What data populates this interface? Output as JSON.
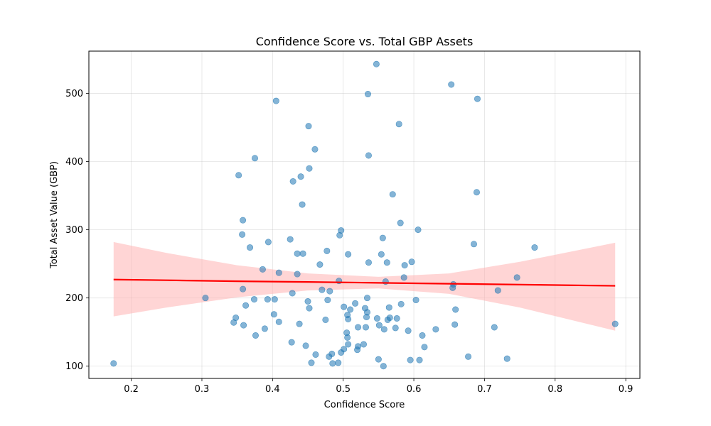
{
  "chart_data": {
    "type": "scatter",
    "title": "Confidence Score vs. Total GBP Assets",
    "xlabel": "Confidence Score",
    "ylabel": "Total Asset Value (GBP)",
    "xlim": [
      0.14,
      0.92
    ],
    "ylim": [
      82,
      562
    ],
    "grid": true,
    "x_ticks": [
      "0.2",
      "0.3",
      "0.4",
      "0.5",
      "0.6",
      "0.7",
      "0.8",
      "0.9"
    ],
    "y_ticks": [
      "100",
      "200",
      "300",
      "400",
      "500"
    ],
    "point_color": "#1f77b4",
    "point_alpha": 0.55,
    "regression": {
      "color": "#ff0000",
      "band_color": "#ffb3b3",
      "x": [
        0.175,
        0.25,
        0.35,
        0.45,
        0.55,
        0.65,
        0.75,
        0.885
      ],
      "y": [
        227,
        226,
        224.5,
        223.5,
        222.2,
        220.9,
        219.6,
        217.8
      ],
      "band_lower": [
        173,
        186,
        201,
        211,
        214,
        206,
        186,
        152
      ],
      "band_upper": [
        282,
        266,
        248,
        236,
        231,
        236,
        253,
        281
      ]
    },
    "points": [
      {
        "x": 0.175,
        "y": 104
      },
      {
        "x": 0.305,
        "y": 200
      },
      {
        "x": 0.345,
        "y": 164
      },
      {
        "x": 0.348,
        "y": 171
      },
      {
        "x": 0.352,
        "y": 380
      },
      {
        "x": 0.357,
        "y": 293
      },
      {
        "x": 0.358,
        "y": 314
      },
      {
        "x": 0.358,
        "y": 213
      },
      {
        "x": 0.359,
        "y": 160
      },
      {
        "x": 0.362,
        "y": 189
      },
      {
        "x": 0.368,
        "y": 274
      },
      {
        "x": 0.374,
        "y": 198
      },
      {
        "x": 0.375,
        "y": 405
      },
      {
        "x": 0.376,
        "y": 145
      },
      {
        "x": 0.386,
        "y": 242
      },
      {
        "x": 0.389,
        "y": 155
      },
      {
        "x": 0.393,
        "y": 198
      },
      {
        "x": 0.394,
        "y": 282
      },
      {
        "x": 0.402,
        "y": 176
      },
      {
        "x": 0.403,
        "y": 198
      },
      {
        "x": 0.405,
        "y": 489
      },
      {
        "x": 0.409,
        "y": 165
      },
      {
        "x": 0.409,
        "y": 237
      },
      {
        "x": 0.425,
        "y": 286
      },
      {
        "x": 0.427,
        "y": 135
      },
      {
        "x": 0.428,
        "y": 207
      },
      {
        "x": 0.429,
        "y": 371
      },
      {
        "x": 0.435,
        "y": 265
      },
      {
        "x": 0.435,
        "y": 235
      },
      {
        "x": 0.438,
        "y": 162
      },
      {
        "x": 0.44,
        "y": 378
      },
      {
        "x": 0.442,
        "y": 337
      },
      {
        "x": 0.443,
        "y": 265
      },
      {
        "x": 0.447,
        "y": 130
      },
      {
        "x": 0.45,
        "y": 195
      },
      {
        "x": 0.451,
        "y": 452
      },
      {
        "x": 0.452,
        "y": 390
      },
      {
        "x": 0.452,
        "y": 185
      },
      {
        "x": 0.455,
        "y": 105
      },
      {
        "x": 0.46,
        "y": 418
      },
      {
        "x": 0.461,
        "y": 117
      },
      {
        "x": 0.467,
        "y": 249
      },
      {
        "x": 0.47,
        "y": 212
      },
      {
        "x": 0.475,
        "y": 168
      },
      {
        "x": 0.477,
        "y": 269
      },
      {
        "x": 0.478,
        "y": 197
      },
      {
        "x": 0.48,
        "y": 114
      },
      {
        "x": 0.481,
        "y": 210
      },
      {
        "x": 0.484,
        "y": 118
      },
      {
        "x": 0.485,
        "y": 104
      },
      {
        "x": 0.493,
        "y": 105
      },
      {
        "x": 0.494,
        "y": 225
      },
      {
        "x": 0.495,
        "y": 292
      },
      {
        "x": 0.497,
        "y": 120
      },
      {
        "x": 0.497,
        "y": 299
      },
      {
        "x": 0.501,
        "y": 125
      },
      {
        "x": 0.501,
        "y": 187
      },
      {
        "x": 0.505,
        "y": 149
      },
      {
        "x": 0.506,
        "y": 142
      },
      {
        "x": 0.506,
        "y": 175
      },
      {
        "x": 0.507,
        "y": 132
      },
      {
        "x": 0.507,
        "y": 169
      },
      {
        "x": 0.507,
        "y": 264
      },
      {
        "x": 0.51,
        "y": 183
      },
      {
        "x": 0.517,
        "y": 192
      },
      {
        "x": 0.52,
        "y": 124
      },
      {
        "x": 0.521,
        "y": 129
      },
      {
        "x": 0.521,
        "y": 157
      },
      {
        "x": 0.529,
        "y": 132
      },
      {
        "x": 0.531,
        "y": 185
      },
      {
        "x": 0.532,
        "y": 157
      },
      {
        "x": 0.533,
        "y": 172
      },
      {
        "x": 0.534,
        "y": 179
      },
      {
        "x": 0.534,
        "y": 200
      },
      {
        "x": 0.535,
        "y": 499
      },
      {
        "x": 0.536,
        "y": 409
      },
      {
        "x": 0.536,
        "y": 252
      },
      {
        "x": 0.547,
        "y": 543
      },
      {
        "x": 0.548,
        "y": 170
      },
      {
        "x": 0.55,
        "y": 110
      },
      {
        "x": 0.551,
        "y": 160
      },
      {
        "x": 0.554,
        "y": 264
      },
      {
        "x": 0.556,
        "y": 288
      },
      {
        "x": 0.557,
        "y": 100
      },
      {
        "x": 0.558,
        "y": 154
      },
      {
        "x": 0.56,
        "y": 224
      },
      {
        "x": 0.562,
        "y": 252
      },
      {
        "x": 0.563,
        "y": 168
      },
      {
        "x": 0.565,
        "y": 186
      },
      {
        "x": 0.566,
        "y": 171
      },
      {
        "x": 0.57,
        "y": 352
      },
      {
        "x": 0.574,
        "y": 156
      },
      {
        "x": 0.576,
        "y": 170
      },
      {
        "x": 0.579,
        "y": 455
      },
      {
        "x": 0.581,
        "y": 310
      },
      {
        "x": 0.582,
        "y": 191
      },
      {
        "x": 0.586,
        "y": 230
      },
      {
        "x": 0.587,
        "y": 248
      },
      {
        "x": 0.592,
        "y": 152
      },
      {
        "x": 0.595,
        "y": 109
      },
      {
        "x": 0.597,
        "y": 253
      },
      {
        "x": 0.603,
        "y": 197
      },
      {
        "x": 0.606,
        "y": 300
      },
      {
        "x": 0.608,
        "y": 109
      },
      {
        "x": 0.612,
        "y": 145
      },
      {
        "x": 0.615,
        "y": 128
      },
      {
        "x": 0.631,
        "y": 154
      },
      {
        "x": 0.653,
        "y": 513
      },
      {
        "x": 0.655,
        "y": 215
      },
      {
        "x": 0.656,
        "y": 220
      },
      {
        "x": 0.658,
        "y": 161
      },
      {
        "x": 0.659,
        "y": 183
      },
      {
        "x": 0.677,
        "y": 114
      },
      {
        "x": 0.685,
        "y": 279
      },
      {
        "x": 0.689,
        "y": 355
      },
      {
        "x": 0.69,
        "y": 492
      },
      {
        "x": 0.714,
        "y": 157
      },
      {
        "x": 0.719,
        "y": 211
      },
      {
        "x": 0.732,
        "y": 111
      },
      {
        "x": 0.746,
        "y": 230
      },
      {
        "x": 0.771,
        "y": 274
      },
      {
        "x": 0.885,
        "y": 162
      }
    ]
  }
}
